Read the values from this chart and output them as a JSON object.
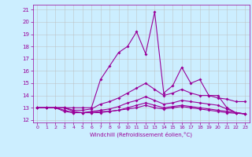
{
  "x": [
    0,
    1,
    2,
    3,
    4,
    5,
    6,
    7,
    8,
    9,
    10,
    11,
    12,
    13,
    14,
    15,
    16,
    17,
    18,
    19,
    20,
    21,
    22,
    23
  ],
  "line1": [
    13,
    13,
    13,
    13,
    13,
    13,
    13,
    15.3,
    16.4,
    17.5,
    18.0,
    19.2,
    17.4,
    20.8,
    14.2,
    14.8,
    16.3,
    15.0,
    15.3,
    14.0,
    14.0,
    13.0,
    12.6,
    12.5
  ],
  "line2": [
    13,
    13,
    13,
    13,
    12.8,
    12.8,
    12.9,
    13.3,
    13.5,
    13.8,
    14.2,
    14.6,
    15.0,
    14.5,
    14.0,
    14.2,
    14.5,
    14.2,
    14.0,
    14.0,
    13.8,
    13.7,
    13.5,
    13.5
  ],
  "line3": [
    13,
    13,
    13,
    13,
    12.7,
    12.6,
    12.7,
    12.8,
    12.9,
    13.1,
    13.4,
    13.6,
    13.9,
    13.6,
    13.3,
    13.4,
    13.6,
    13.5,
    13.4,
    13.3,
    13.2,
    12.9,
    12.6,
    12.5
  ],
  "line4": [
    13,
    13,
    13,
    12.8,
    12.6,
    12.6,
    12.6,
    12.7,
    12.7,
    12.8,
    13.0,
    13.2,
    13.4,
    13.2,
    13.0,
    13.1,
    13.2,
    13.1,
    13.0,
    12.9,
    12.8,
    12.7,
    12.6,
    12.5
  ],
  "line5": [
    13,
    13,
    13,
    12.7,
    12.6,
    12.6,
    12.6,
    12.6,
    12.7,
    12.8,
    12.9,
    13.0,
    13.2,
    13.0,
    12.9,
    13.0,
    13.1,
    13.0,
    12.9,
    12.8,
    12.7,
    12.6,
    12.55,
    12.5
  ],
  "ylim": [
    11.8,
    21.4
  ],
  "xlim": [
    -0.5,
    23.5
  ],
  "yticks": [
    12,
    13,
    14,
    15,
    16,
    17,
    18,
    19,
    20,
    21
  ],
  "xticks": [
    0,
    1,
    2,
    3,
    4,
    5,
    6,
    7,
    8,
    9,
    10,
    11,
    12,
    13,
    14,
    15,
    16,
    17,
    18,
    19,
    20,
    21,
    22,
    23
  ],
  "line_color": "#990099",
  "bg_color": "#cceeff",
  "grid_color": "#bbbbbb",
  "xlabel": "Windchill (Refroidissement éolien,°C)",
  "markersize": 2.0,
  "linewidth": 0.8
}
